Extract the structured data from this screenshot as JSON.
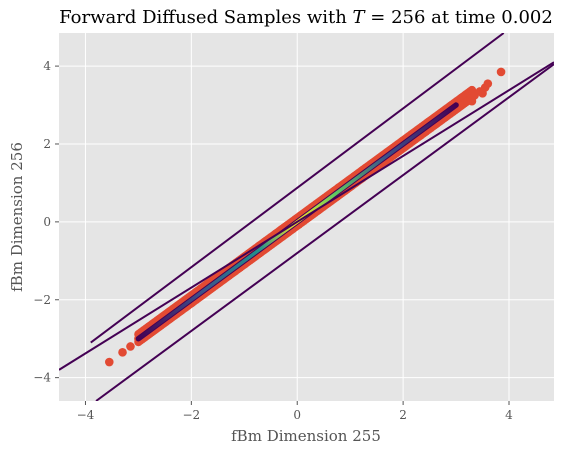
{
  "chart_data": {
    "type": "scatter",
    "title": "Forward Diffused Samples with T = 256 at time 0.002",
    "title_parts": {
      "prefix": "Forward Diffused Samples with ",
      "variable": "T",
      "suffix": " = 256 at time 0.002"
    },
    "xlabel": "fBm Dimension 255",
    "ylabel": "fBm Dimension 256",
    "xlim": [
      -4.5,
      4.85
    ],
    "ylim": [
      -4.6,
      4.85
    ],
    "xticks": [
      -4,
      -2,
      0,
      2,
      4
    ],
    "yticks": [
      -4,
      -2,
      0,
      2,
      4
    ],
    "xtick_labels": [
      "−4",
      "−2",
      "0",
      "2",
      "4"
    ],
    "ytick_labels": [
      "−4",
      "−2",
      "0",
      "2",
      "4"
    ],
    "grid": true,
    "background": "#e5e5e5",
    "grid_color": "#ffffff",
    "scatter_color": "#e24a33",
    "scatter_outliers": [
      [
        -3.55,
        -3.6
      ],
      [
        -3.3,
        -3.35
      ],
      [
        -3.15,
        -3.2
      ],
      [
        -3.0,
        -3.0
      ],
      [
        -2.9,
        -2.9
      ],
      [
        3.3,
        3.1
      ],
      [
        3.35,
        3.25
      ],
      [
        3.45,
        3.35
      ],
      [
        3.5,
        3.3
      ],
      [
        3.55,
        3.45
      ],
      [
        3.6,
        3.55
      ],
      [
        3.85,
        3.85
      ]
    ],
    "scatter_band": {
      "x_range": [
        -3.0,
        3.3
      ],
      "slope": 0.995,
      "half_width": 0.1
    },
    "contour_lines": [
      {
        "level": "outer",
        "color": "#440154",
        "points": [
          [
            -4.5,
            -3.8
          ],
          [
            4.85,
            4.1
          ]
        ]
      },
      {
        "level": "upper",
        "color": "#440154",
        "points": [
          [
            -3.9,
            -3.1
          ],
          [
            3.9,
            4.85
          ]
        ]
      },
      {
        "level": "lower",
        "color": "#440154",
        "points": [
          [
            -3.8,
            -4.6
          ],
          [
            4.85,
            4.05
          ]
        ]
      }
    ],
    "density_ridge": {
      "x_range": [
        -3.0,
        3.0
      ],
      "stops": [
        {
          "offset": 0.0,
          "color": "#440154"
        },
        {
          "offset": 0.2,
          "color": "#3b528b"
        },
        {
          "offset": 0.38,
          "color": "#21918c"
        },
        {
          "offset": 0.5,
          "color": "#fde725"
        },
        {
          "offset": 0.62,
          "color": "#5ec962"
        },
        {
          "offset": 0.78,
          "color": "#3b528b"
        },
        {
          "offset": 1.0,
          "color": "#440154"
        }
      ]
    }
  }
}
